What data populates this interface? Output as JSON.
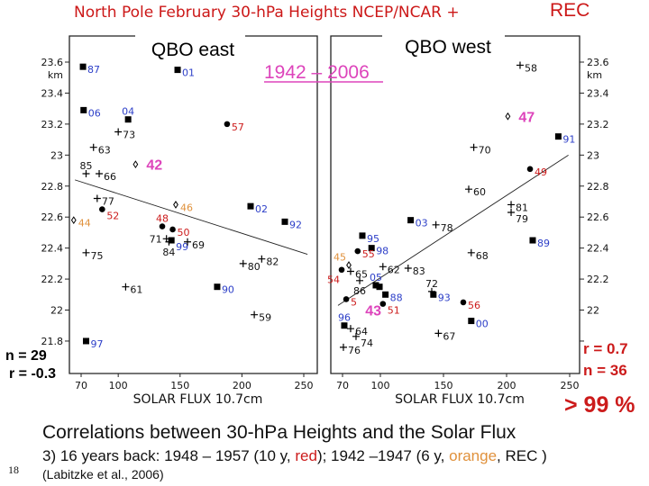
{
  "slide": {
    "title": "North Pole February 30-hPa Heights NCEP/NCAR +",
    "title_rec": "REC",
    "period": "1942 – 2006",
    "caption": "Correlations between 30-hPa Heights and the Solar Flux",
    "subcaption_parts": [
      "3) 16 years back: 1948 – 1957 (10 y, ",
      "red",
      "); 1942 –1947 (6 y, ",
      "orange",
      ", REC )"
    ],
    "citation": "(Labitzke et al., 2006)",
    "slide_number": "18",
    "significance": "> 99 %"
  },
  "colors": {
    "blue": "#2d3fc8",
    "red": "#cc1b1b",
    "orange": "#e0913c",
    "magenta": "#dd44bb",
    "black": "#111111"
  },
  "chart_data": [
    {
      "type": "scatter",
      "title": "QBO east",
      "xlabel": "SOLAR FLUX 10.7cm",
      "ylabel_unit": "km",
      "xlim": [
        70,
        250
      ],
      "ylim": [
        21.8,
        23.6
      ],
      "xticks": [
        "70",
        "100",
        "150",
        "200",
        "250"
      ],
      "yticks": [
        "23.6",
        "23.4",
        "23.2",
        "23",
        "22.8",
        "22.6",
        "22.4",
        "22.2",
        "22",
        "21.8"
      ],
      "stats": {
        "n": "n = 29",
        "r": "r = -0.3"
      },
      "trend": [
        [
          65,
          22.84
        ],
        [
          253,
          22.36
        ]
      ],
      "points": [
        {
          "label": "87",
          "x": 71.5,
          "y": 23.57,
          "marker": "square",
          "color": "blue"
        },
        {
          "label": "01",
          "x": 148,
          "y": 23.55,
          "marker": "square",
          "color": "blue"
        },
        {
          "label": "06",
          "x": 72,
          "y": 23.29,
          "marker": "square",
          "color": "blue"
        },
        {
          "label": "04",
          "x": 108,
          "y": 23.23,
          "marker": "square",
          "color": "blue",
          "label_pos": "above"
        },
        {
          "label": "57",
          "x": 188,
          "y": 23.2,
          "marker": "circle",
          "color": "red"
        },
        {
          "label": "73",
          "x": 100,
          "y": 23.15,
          "marker": "plus",
          "color": "black"
        },
        {
          "label": "63",
          "x": 80,
          "y": 23.05,
          "marker": "plus",
          "color": "black"
        },
        {
          "label": "85",
          "x": 74,
          "y": 22.88,
          "marker": "plus",
          "color": "black",
          "label_pos": "above"
        },
        {
          "label": "66",
          "x": 84.6,
          "y": 22.88,
          "marker": "plus",
          "color": "black"
        },
        {
          "label": "42",
          "x": 114,
          "y": 22.94,
          "marker": "diamond",
          "color": "magenta",
          "label_pos": "big"
        },
        {
          "label": "77",
          "x": 83,
          "y": 22.72,
          "marker": "plus",
          "color": "black"
        },
        {
          "label": "52",
          "x": 87,
          "y": 22.65,
          "marker": "circle",
          "color": "red"
        },
        {
          "label": "46",
          "x": 146.5,
          "y": 22.68,
          "marker": "diamond",
          "color": "orange"
        },
        {
          "label": "02",
          "x": 207,
          "y": 22.67,
          "marker": "square",
          "color": "blue"
        },
        {
          "label": "92",
          "x": 234.7,
          "y": 22.57,
          "marker": "square",
          "color": "blue"
        },
        {
          "label": "44",
          "x": 64,
          "y": 22.58,
          "marker": "diamond",
          "color": "orange"
        },
        {
          "label": "48",
          "x": 135.6,
          "y": 22.54,
          "marker": "circle",
          "color": "red",
          "label_pos": "above"
        },
        {
          "label": "50",
          "x": 144,
          "y": 22.52,
          "marker": "circle",
          "color": "red"
        },
        {
          "label": "71",
          "x": 139,
          "y": 22.46,
          "marker": "plus",
          "color": "black",
          "label_pos": "left"
        },
        {
          "label": "99",
          "x": 143,
          "y": 22.45,
          "marker": "square",
          "color": "blue"
        },
        {
          "label": "84",
          "x": 141,
          "y": 22.44,
          "marker": "plus",
          "color": "black",
          "label_pos": "below"
        },
        {
          "label": "69",
          "x": 156,
          "y": 22.44,
          "marker": "plus",
          "color": "black"
        },
        {
          "label": "75",
          "x": 74,
          "y": 22.37,
          "marker": "plus",
          "color": "black"
        },
        {
          "label": "80",
          "x": 201,
          "y": 22.3,
          "marker": "plus",
          "color": "black"
        },
        {
          "label": "82",
          "x": 216,
          "y": 22.33,
          "marker": "plus",
          "color": "black"
        },
        {
          "label": "61",
          "x": 106,
          "y": 22.15,
          "marker": "plus",
          "color": "black"
        },
        {
          "label": "90",
          "x": 180,
          "y": 22.15,
          "marker": "square",
          "color": "blue"
        },
        {
          "label": "59",
          "x": 210,
          "y": 21.97,
          "marker": "plus",
          "color": "black"
        },
        {
          "label": "97",
          "x": 74,
          "y": 21.8,
          "marker": "square",
          "color": "blue"
        }
      ]
    },
    {
      "type": "scatter",
      "title": "QBO west",
      "xlabel": "SOLAR FLUX 10.7cm",
      "ylabel_unit": "km",
      "xlim": [
        70,
        250
      ],
      "ylim": [
        21.8,
        23.6
      ],
      "xticks": [
        "70",
        "100",
        "150",
        "200",
        "250"
      ],
      "yticks": [
        "23.6",
        "23.4",
        "23.2",
        "23",
        "22.8",
        "22.6",
        "22.4",
        "22.2",
        "22",
        "21.8"
      ],
      "stats": {
        "r": "r = 0.7",
        "n": "n = 36"
      },
      "trend": [
        [
          66.4,
          22.03
        ],
        [
          249,
          23.0
        ]
      ],
      "points": [
        {
          "label": "58",
          "x": 210.7,
          "y": 23.58,
          "marker": "plus",
          "color": "black"
        },
        {
          "label": "47",
          "x": 201,
          "y": 23.25,
          "marker": "diamond",
          "color": "magenta",
          "label_pos": "big"
        },
        {
          "label": "91",
          "x": 241,
          "y": 23.12,
          "marker": "square",
          "color": "blue"
        },
        {
          "label": "70",
          "x": 174,
          "y": 23.05,
          "marker": "plus",
          "color": "black"
        },
        {
          "label": "49",
          "x": 218.6,
          "y": 22.91,
          "marker": "circle",
          "color": "red"
        },
        {
          "label": "60",
          "x": 170,
          "y": 22.78,
          "marker": "plus",
          "color": "black"
        },
        {
          "label": "81",
          "x": 203.6,
          "y": 22.68,
          "marker": "plus",
          "color": "black"
        },
        {
          "label": "79",
          "x": 203.6,
          "y": 22.63,
          "marker": "plus",
          "color": "black"
        },
        {
          "label": "03",
          "x": 124,
          "y": 22.58,
          "marker": "square",
          "color": "blue"
        },
        {
          "label": "78",
          "x": 144,
          "y": 22.55,
          "marker": "plus",
          "color": "black"
        },
        {
          "label": "95",
          "x": 85.7,
          "y": 22.48,
          "marker": "square",
          "color": "blue"
        },
        {
          "label": "89",
          "x": 220.7,
          "y": 22.45,
          "marker": "square",
          "color": "blue"
        },
        {
          "label": "98",
          "x": 93,
          "y": 22.4,
          "marker": "square",
          "color": "blue"
        },
        {
          "label": "55",
          "x": 82,
          "y": 22.38,
          "marker": "circle",
          "color": "red"
        },
        {
          "label": "68",
          "x": 172,
          "y": 22.37,
          "marker": "plus",
          "color": "black"
        },
        {
          "label": "45",
          "x": 75,
          "y": 22.29,
          "marker": "diamond",
          "color": "orange",
          "label_pos": "aboveleft"
        },
        {
          "label": "54",
          "x": 69.3,
          "y": 22.26,
          "marker": "circle",
          "color": "red",
          "label_pos": "belowleft"
        },
        {
          "label": "65",
          "x": 76.4,
          "y": 22.25,
          "marker": "plus",
          "color": "black"
        },
        {
          "label": "62",
          "x": 102,
          "y": 22.28,
          "marker": "plus",
          "color": "black"
        },
        {
          "label": "83",
          "x": 122,
          "y": 22.27,
          "marker": "plus",
          "color": "black"
        },
        {
          "label": "86",
          "x": 83.6,
          "y": 22.19,
          "marker": "plus",
          "color": "black",
          "label_pos": "below"
        },
        {
          "label": "05",
          "x": 96.4,
          "y": 22.16,
          "marker": "square",
          "color": "blue",
          "label_pos": "above"
        },
        {
          "label": "",
          "x": 99.3,
          "y": 22.15,
          "marker": "square",
          "color": "blue"
        },
        {
          "label": "72",
          "x": 140.7,
          "y": 22.12,
          "marker": "plus",
          "color": "black",
          "label_pos": "above"
        },
        {
          "label": "93",
          "x": 142,
          "y": 22.1,
          "marker": "square",
          "color": "blue"
        },
        {
          "label": "88",
          "x": 104,
          "y": 22.1,
          "marker": "square",
          "color": "blue"
        },
        {
          "label": "5",
          "x": 72.9,
          "y": 22.07,
          "marker": "circle",
          "color": "red"
        },
        {
          "label": "51",
          "x": 102,
          "y": 22.04,
          "marker": "circle",
          "color": "red"
        },
        {
          "label": "56",
          "x": 165.7,
          "y": 22.05,
          "marker": "circle",
          "color": "red"
        },
        {
          "label": "43",
          "x": 88,
          "y": 22.0,
          "marker": "none",
          "color": "magenta",
          "label_pos": "big"
        },
        {
          "label": "96",
          "x": 71.4,
          "y": 21.9,
          "marker": "square",
          "color": "blue",
          "label_pos": "above"
        },
        {
          "label": "64",
          "x": 76.4,
          "y": 21.88,
          "marker": "plus",
          "color": "black"
        },
        {
          "label": "00",
          "x": 172,
          "y": 21.93,
          "marker": "square",
          "color": "blue"
        },
        {
          "label": "74",
          "x": 80.7,
          "y": 21.83,
          "marker": "plus",
          "color": "black"
        },
        {
          "label": "67",
          "x": 146,
          "y": 21.85,
          "marker": "plus",
          "color": "black"
        },
        {
          "label": "76",
          "x": 70.7,
          "y": 21.76,
          "marker": "plus",
          "color": "black"
        }
      ]
    }
  ]
}
